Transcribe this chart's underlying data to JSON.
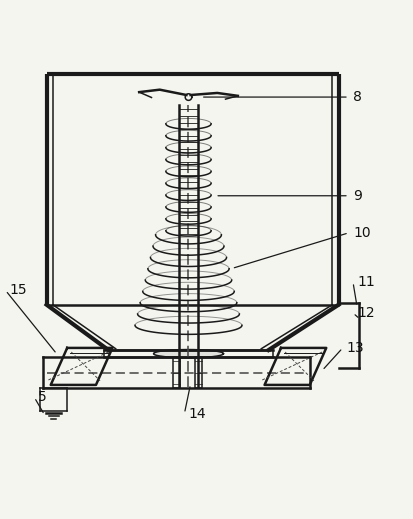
{
  "bg_color": "#f5f5f0",
  "line_color": "#1a1a1a",
  "dashed_color": "#444444",
  "label_color": "#111111",
  "figsize": [
    4.14,
    5.19
  ],
  "dpi": 100
}
